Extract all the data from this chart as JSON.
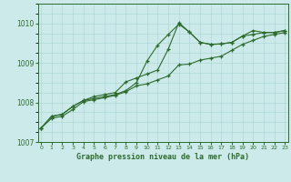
{
  "title": "Graphe pression niveau de la mer (hPa)",
  "bg_color": "#cdeaea",
  "grid_color": "#a8d4d4",
  "line_color": "#2d6b2d",
  "x_values": [
    0,
    1,
    2,
    3,
    4,
    5,
    6,
    7,
    8,
    9,
    10,
    11,
    12,
    13,
    14,
    15,
    16,
    17,
    18,
    19,
    20,
    21,
    22,
    23
  ],
  "series1": [
    1007.35,
    1007.65,
    1007.7,
    1007.9,
    1008.05,
    1008.1,
    1008.15,
    1008.2,
    1008.3,
    1008.5,
    1009.05,
    1009.45,
    1009.72,
    1009.98,
    1009.78,
    1009.52,
    1009.47,
    1009.48,
    1009.52,
    1009.68,
    1009.72,
    1009.77,
    1009.77,
    1009.82
  ],
  "series2": [
    1007.35,
    1007.65,
    1007.7,
    1007.9,
    1008.05,
    1008.15,
    1008.2,
    1008.25,
    1008.52,
    1008.62,
    1008.72,
    1008.82,
    1009.35,
    1010.02,
    1009.78,
    1009.52,
    1009.47,
    1009.48,
    1009.52,
    1009.68,
    1009.82,
    1009.77,
    1009.77,
    1009.82
  ],
  "series3": [
    1007.35,
    1007.6,
    1007.65,
    1007.82,
    1008.02,
    1008.07,
    1008.12,
    1008.18,
    1008.27,
    1008.42,
    1008.47,
    1008.57,
    1008.67,
    1008.95,
    1008.97,
    1009.07,
    1009.12,
    1009.17,
    1009.32,
    1009.47,
    1009.57,
    1009.67,
    1009.72,
    1009.77
  ],
  "ylim": [
    1007.0,
    1010.5
  ],
  "yticks": [
    1007,
    1008,
    1009,
    1010
  ],
  "xlim": [
    -0.3,
    23.3
  ]
}
